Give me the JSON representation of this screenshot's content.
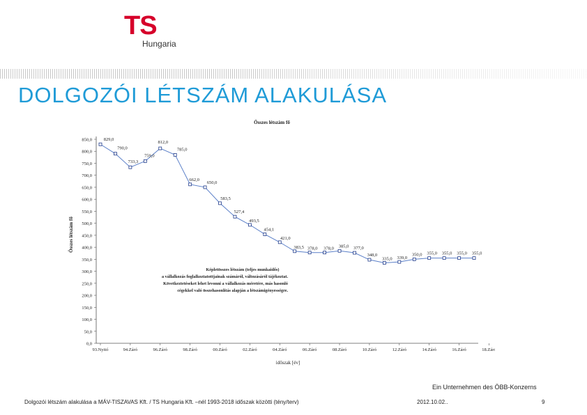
{
  "logo": {
    "main": "TS",
    "sub": "Hungaria"
  },
  "slide_title": "DOLGOZÓI LÉTSZÁM ALAKULÁSA",
  "footer": {
    "brand": "Ein Unternehmen des ÖBB-Konzerns",
    "caption": "Dolgozói létszám alakulása a MÁV-TISZAVAS Kft. / TS Hungaria Kft. –nél 1993-2018 időszak közötti (tény/terv)",
    "date": "2012.10.02..",
    "page": "9"
  },
  "colors": {
    "title": "#1f9bd7",
    "logo": "#d6002a",
    "series": "#5a7fc8",
    "marker": "#1f3a8a"
  },
  "chart_data": {
    "type": "line",
    "title": "Összes létszám fő",
    "xlabel": "időszak [év]",
    "ylabel": "Összes létszám fő",
    "ylim": [
      0,
      850
    ],
    "yticks": [
      "0,0",
      "50,0",
      "100,0",
      "150,0",
      "200,0",
      "250,0",
      "300,0",
      "350,0",
      "400,0",
      "450,0",
      "500,0",
      "550,0",
      "600,0",
      "650,0",
      "700,0",
      "750,0",
      "800,0",
      "850,0"
    ],
    "x_tick_labels": [
      "93.Nyitó",
      "94.Záró",
      "96.Záró",
      "98.Záró",
      "00.Záró",
      "02.Záró",
      "04.Záró",
      "06.Záró",
      "08.Záró",
      "10.Záró",
      "12.Záró",
      "14.Záró",
      "16.Záró",
      "18.Záró"
    ],
    "series": [
      {
        "values": [
          829.0,
          790.0,
          733.3,
          759.0,
          812.0,
          785.0,
          662.0,
          650.0,
          583.5,
          527.4,
          493.5,
          454.1,
          421.0,
          383.5,
          378.0,
          378.0,
          385.0,
          377.0,
          348.0,
          335.0,
          339.0,
          350.0,
          355.0,
          355.0,
          355.0,
          355.0
        ],
        "labels": [
          "829,0",
          "790,0",
          "733,3",
          "759,0",
          "812,0",
          "785,0",
          "662,0",
          "650,0",
          "583,5",
          "527,4",
          "493,5",
          "454,1",
          "421,0",
          "383,5",
          "378,0",
          "378,0",
          "385,0",
          "377,0",
          "348,0",
          "335,0",
          "339,0",
          "350,0",
          "355,0",
          "355,0",
          "355,0",
          "355,0"
        ]
      }
    ],
    "annotation": [
      "Képletösszes létszám (teljes munkaidős)",
      "a vállalkozás foglalkoztatottjainak számáról, változásáról tájékoztat.",
      "Következtetéseket lehet levonni a vállalkozás méretére, más hasonló",
      "cégekkel való összehasonlítás alapján a létszámigényességre."
    ],
    "grid": false,
    "legend": "none"
  }
}
